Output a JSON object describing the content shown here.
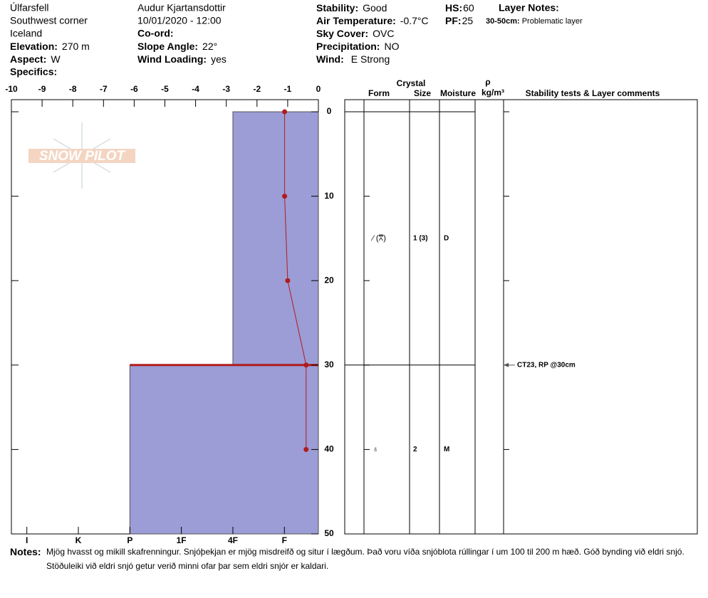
{
  "header": {
    "site": "Úlfarsfell",
    "area": "Southwest corner",
    "country": "Iceland",
    "observer": "Audur Kjartansdottir",
    "datetime": "10/01/2020 - 12:00",
    "fields": {
      "elevation": {
        "label": "Elevation:",
        "value": "270 m"
      },
      "aspect": {
        "label": "Aspect:",
        "value": "W"
      },
      "specifics": {
        "label": "Specifics:"
      },
      "coord": {
        "label": "Co-ord:"
      },
      "slope": {
        "label": "Slope Angle:",
        "value": "22°"
      },
      "wind_loading": {
        "label": "Wind Loading:",
        "value": "yes"
      },
      "stability": {
        "label": "Stability:",
        "value": "Good"
      },
      "air_temp": {
        "label": "Air Temperature:",
        "value": "-0.7°C"
      },
      "sky": {
        "label": "Sky Cover:",
        "value": "OVC"
      },
      "precip": {
        "label": "Precipitation:",
        "value": "NO"
      },
      "wind": {
        "label": "Wind:",
        "value": "E Strong"
      },
      "hs": {
        "label": "HS:",
        "value": 60
      },
      "pf": {
        "label": "PF:",
        "value": 25
      }
    },
    "layer_notes": {
      "title": "Layer Notes:",
      "range": "30-50cm:",
      "text": "Problematic layer"
    }
  },
  "watermark": "SNOW PILOT",
  "chart_data": {
    "type": "snow_profile",
    "xlim": [
      -10,
      0
    ],
    "xticks": [
      -10,
      -9,
      -8,
      -7,
      -6,
      -5,
      -4,
      -3,
      -2,
      -1,
      0
    ],
    "ylim": [
      0,
      50
    ],
    "yticks": [
      0,
      10,
      20,
      30,
      40,
      50
    ],
    "hardness_lim": [
      6.3,
      0.34
    ],
    "hardness_ticks": [
      {
        "value": 6,
        "label": "I"
      },
      {
        "value": 5,
        "label": "K"
      },
      {
        "value": 4,
        "label": "P"
      },
      {
        "value": 3,
        "label": "1F"
      },
      {
        "value": 2,
        "label": "4F"
      },
      {
        "value": 1,
        "label": "F"
      }
    ],
    "layer_color": "#9c9cd6",
    "highlight_color": "#b01c1c",
    "temperature": {
      "color": "#b01c1c",
      "depth": [
        0,
        10,
        20,
        30,
        40
      ],
      "values": [
        -1.1,
        -1.1,
        -1.0,
        -0.4,
        -0.4
      ]
    },
    "layers": [
      {
        "top": 0,
        "bottom": 30,
        "hardness": 2,
        "mid": 15,
        "form": "⁄ (⩞)",
        "size": "1 (3)",
        "moisture": "D"
      },
      {
        "top": 30,
        "bottom": 50,
        "hardness": 4,
        "mid": 40,
        "form": "♁",
        "size": "2",
        "moisture": "M",
        "problematic": true
      }
    ],
    "columns": {
      "crystal": "Crystal",
      "form": "Form",
      "size": "Size",
      "moisture": "Moisture",
      "density": "ρ",
      "density_unit": "kg/m³",
      "comments": "Stability tests & Layer comments"
    },
    "comments": [
      {
        "depth": 30,
        "text": "CT23, RP @30cm"
      }
    ]
  },
  "notes": {
    "label": "Notes:",
    "text": "Mjög hvasst og mikill skafrenningur. Snjóþekjan er mjög misdreifð og situr í lægðum. Það voru víða snjóblota rúllingar í um 100 til 200 m hæð.  Góð bynding við eldri snjó. Stöðuleiki við eldri snjó getur verið minni ofar þar sem eldri snjór er kaldari."
  }
}
